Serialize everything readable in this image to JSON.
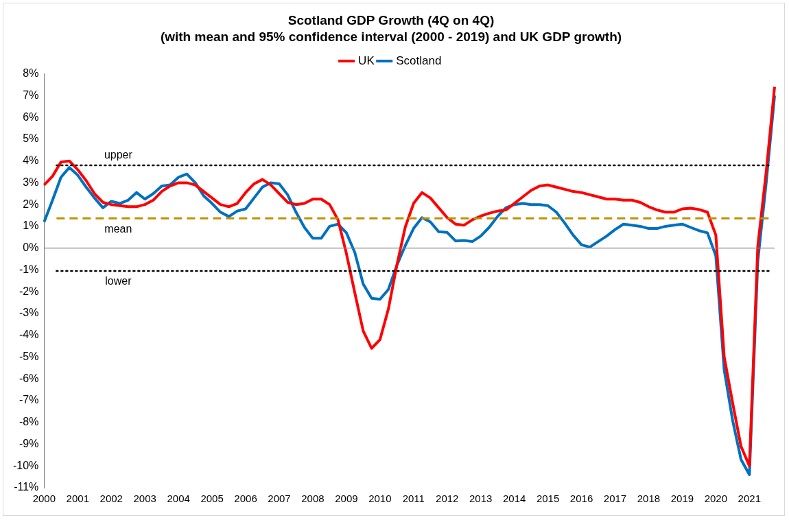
{
  "chart_data": {
    "type": "line",
    "title": "Scotland GDP Growth (4Q on 4Q)",
    "subtitle": "(with mean and 95% confidence interval (2000 - 2019) and UK GDP growth)",
    "categories": [
      "2000",
      null,
      null,
      null,
      "2001",
      null,
      null,
      null,
      "2002",
      null,
      null,
      null,
      "2003",
      null,
      null,
      null,
      "2004",
      null,
      null,
      null,
      "2005",
      null,
      null,
      null,
      "2006",
      null,
      null,
      null,
      "2007",
      null,
      null,
      null,
      "2008",
      null,
      null,
      null,
      "2009",
      null,
      null,
      null,
      "2010",
      null,
      null,
      null,
      "2011",
      null,
      null,
      null,
      "2012",
      null,
      null,
      null,
      "2013",
      null,
      null,
      null,
      "2014",
      null,
      null,
      null,
      "2015",
      null,
      null,
      null,
      "2016",
      null,
      null,
      null,
      "2017",
      null,
      null,
      null,
      "2018",
      null,
      null,
      null,
      "2019",
      null,
      null,
      null,
      "2020",
      null,
      null,
      null,
      "2021",
      null,
      null,
      null
    ],
    "series": [
      {
        "name": "UK",
        "color": "#ff0000",
        "values": [
          2.9,
          3.3,
          3.95,
          4.0,
          3.6,
          3.1,
          2.5,
          2.1,
          2.0,
          1.95,
          1.9,
          1.9,
          2.0,
          2.2,
          2.6,
          2.85,
          3.0,
          3.0,
          2.9,
          2.6,
          2.3,
          2.0,
          1.9,
          2.05,
          2.55,
          2.95,
          3.15,
          2.9,
          2.5,
          2.1,
          2.0,
          2.05,
          2.25,
          2.25,
          2.0,
          1.3,
          -0.25,
          -2.05,
          -3.8,
          -4.6,
          -4.2,
          -2.8,
          -0.8,
          0.95,
          2.05,
          2.55,
          2.3,
          1.85,
          1.4,
          1.1,
          1.05,
          1.3,
          1.47,
          1.6,
          1.7,
          1.75,
          2.05,
          2.35,
          2.65,
          2.85,
          2.9,
          2.8,
          2.7,
          2.6,
          2.55,
          2.45,
          2.35,
          2.25,
          2.25,
          2.2,
          2.2,
          2.1,
          1.9,
          1.75,
          1.65,
          1.65,
          1.8,
          1.83,
          1.77,
          1.65,
          0.6,
          -5.0,
          -7.1,
          -9.1,
          -10.0,
          0.1,
          3.5,
          7.4
        ]
      },
      {
        "name": "Scotland",
        "color": "#0070c0",
        "values": [
          1.2,
          2.2,
          3.25,
          3.7,
          3.35,
          2.8,
          2.3,
          1.85,
          2.15,
          2.05,
          2.2,
          2.55,
          2.25,
          2.5,
          2.85,
          2.9,
          3.25,
          3.4,
          3.0,
          2.4,
          2.05,
          1.65,
          1.45,
          1.7,
          1.8,
          2.3,
          2.8,
          3.0,
          2.95,
          2.45,
          1.65,
          0.95,
          0.45,
          0.45,
          1.0,
          1.1,
          0.7,
          -0.2,
          -1.65,
          -2.3,
          -2.35,
          -1.9,
          -0.8,
          0.1,
          0.9,
          1.4,
          1.2,
          0.75,
          0.72,
          0.33,
          0.35,
          0.3,
          0.55,
          0.95,
          1.45,
          1.85,
          2.0,
          2.05,
          2.0,
          2.0,
          1.95,
          1.65,
          1.15,
          0.6,
          0.15,
          0.05,
          0.3,
          0.55,
          0.85,
          1.1,
          1.05,
          1.0,
          0.9,
          0.9,
          1.0,
          1.05,
          1.1,
          0.95,
          0.8,
          0.7,
          -0.35,
          -5.6,
          -7.9,
          -9.7,
          -10.4,
          -0.6,
          3.0,
          7.0
        ]
      }
    ],
    "ylim": [
      -11,
      8
    ],
    "yticks": [
      {
        "value": -11,
        "label": "-11%"
      },
      {
        "value": -10,
        "label": "-10%"
      },
      {
        "value": -9,
        "label": "-9%"
      },
      {
        "value": -8,
        "label": "-8%"
      },
      {
        "value": -7,
        "label": "-7%"
      },
      {
        "value": -6,
        "label": "-6%"
      },
      {
        "value": -5,
        "label": "-5%"
      },
      {
        "value": -4,
        "label": "-4%"
      },
      {
        "value": -3,
        "label": "-3%"
      },
      {
        "value": -2,
        "label": "-2%"
      },
      {
        "value": -1,
        "label": "-1%"
      },
      {
        "value": 0,
        "label": "0%"
      },
      {
        "value": 1,
        "label": "1%"
      },
      {
        "value": 2,
        "label": "2%"
      },
      {
        "value": 3,
        "label": "3%"
      },
      {
        "value": 4,
        "label": "4%"
      },
      {
        "value": 5,
        "label": "5%"
      },
      {
        "value": 6,
        "label": "6%"
      },
      {
        "value": 7,
        "label": "7%"
      },
      {
        "value": 8,
        "label": "8%"
      }
    ],
    "ref_lines": [
      {
        "axis": "y",
        "value": 3.8,
        "label": "upper",
        "color": "#000000",
        "line_style": "dotted"
      },
      {
        "axis": "y",
        "value": 1.37,
        "label": "mean",
        "color": "#bf9000",
        "line_style": "dashed"
      },
      {
        "axis": "y",
        "value": -1.05,
        "label": "lower",
        "color": "#000000",
        "line_style": "dotted"
      }
    ],
    "grid": false,
    "legend": "top",
    "marker": "none",
    "line_style": "solid"
  }
}
